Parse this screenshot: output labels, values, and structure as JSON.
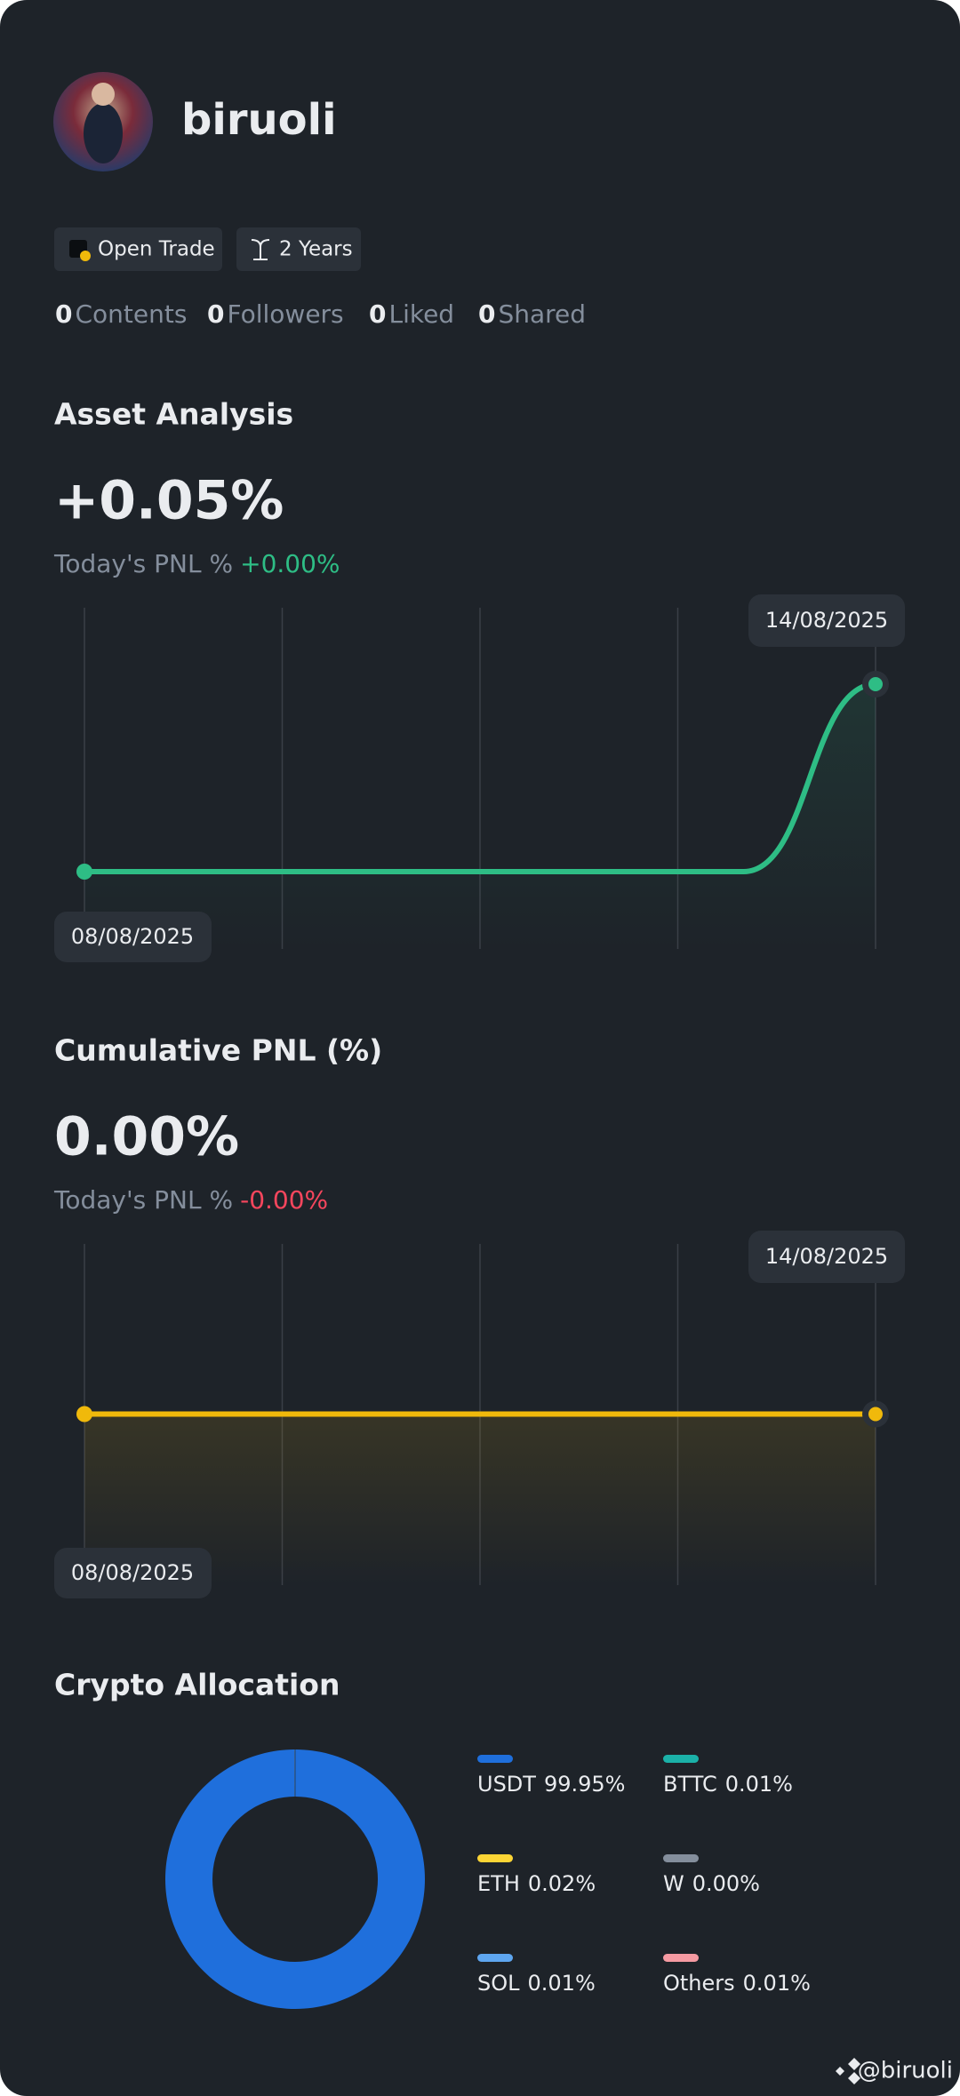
{
  "profile": {
    "name": "biruoli",
    "badges": [
      "Open Trade",
      "2 Years"
    ],
    "stats": [
      {
        "count": 0,
        "label": "Contents"
      },
      {
        "count": 0,
        "label": "Followers"
      },
      {
        "count": 0,
        "label": "Liked"
      },
      {
        "count": 0,
        "label": "Shared"
      }
    ]
  },
  "chart_data": [
    {
      "type": "line",
      "title": "Asset Analysis",
      "headline": "+0.05%",
      "headline_color": "#2ebd85",
      "subtitle": "Today's PNL %",
      "subtitle_value": "+0.00%",
      "subtitle_color": "#2ebd85",
      "x": [
        "08/08/2025",
        null,
        null,
        null,
        null,
        null,
        "14/08/2025"
      ],
      "values": [
        0,
        0,
        0,
        0,
        0,
        0,
        0.05
      ],
      "color": "#2ebd85"
    },
    {
      "type": "line",
      "title": "Cumulative PNL (%)",
      "headline": "0.00%",
      "headline_color": "#eaecef",
      "subtitle": "Today's PNL %",
      "subtitle_value": "-0.00%",
      "subtitle_color": "#f6465d",
      "x": [
        "08/08/2025",
        null,
        null,
        null,
        null,
        null,
        "14/08/2025"
      ],
      "values": [
        0,
        0,
        0,
        0,
        0,
        0,
        0
      ],
      "color": "#f0b90b"
    },
    {
      "type": "pie",
      "title": "Crypto Allocation",
      "categories": [
        "USDT",
        "BTTC",
        "ETH",
        "W",
        "SOL",
        "Others"
      ],
      "values": [
        99.95,
        0.01,
        0.02,
        0.0,
        0.01,
        0.01
      ],
      "value_labels": [
        "99.95%",
        "0.01%",
        "0.02%",
        "0.00%",
        "0.01%",
        "0.01%"
      ],
      "colors": [
        "#1f6fdc",
        "#1bb1a8",
        "#fcd535",
        "#848e9c",
        "#5ea6f0",
        "#f59aa2"
      ]
    }
  ],
  "watermark": "@biruoli"
}
